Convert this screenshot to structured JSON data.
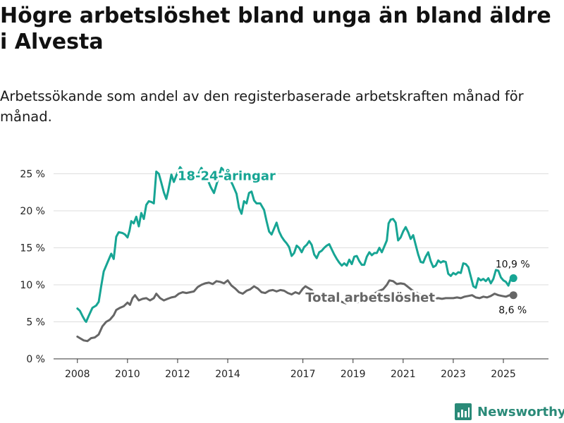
{
  "title": "Högre arbetslöshet bland unga än bland äldre i Alvesta",
  "subtitle": "Arbetssökande som andel av den registerbaserade arbetskraften månad för månad.",
  "brand": {
    "name": "Newsworthy",
    "color": "#2a8a78"
  },
  "chart_data": {
    "type": "line",
    "y_ticks": [
      "0 %",
      "5 %",
      "10 %",
      "15 %",
      "20 %",
      "25 %"
    ],
    "y_tick_values": [
      0,
      5,
      10,
      15,
      20,
      25
    ],
    "x_ticks": [
      "2008",
      "2010",
      "2012",
      "2014",
      "2017",
      "2019",
      "2021",
      "2023",
      "2025"
    ],
    "x_tick_values": [
      2008,
      2010,
      2012,
      2014,
      2017,
      2019,
      2021,
      2023,
      2025
    ],
    "xlim": [
      2007.05,
      2026.8
    ],
    "ylim": [
      0,
      26
    ],
    "series": [
      {
        "name": "18-24-åringar",
        "label": "18-24-åringar",
        "color": "#17a594",
        "end_label": "10,9 %",
        "points": [
          [
            2008.0,
            6.8
          ],
          [
            2008.1,
            6.5
          ],
          [
            2008.2,
            5.8
          ],
          [
            2008.3,
            5.2
          ],
          [
            2008.35,
            5.0
          ],
          [
            2008.45,
            5.8
          ],
          [
            2008.6,
            6.9
          ],
          [
            2008.75,
            7.2
          ],
          [
            2008.85,
            7.7
          ],
          [
            2008.95,
            9.8
          ],
          [
            2009.05,
            11.8
          ],
          [
            2009.2,
            13.0
          ],
          [
            2009.35,
            14.2
          ],
          [
            2009.45,
            13.5
          ],
          [
            2009.55,
            16.5
          ],
          [
            2009.65,
            17.1
          ],
          [
            2009.8,
            17.0
          ],
          [
            2009.9,
            16.8
          ],
          [
            2010.0,
            16.4
          ],
          [
            2010.08,
            17.3
          ],
          [
            2010.15,
            18.6
          ],
          [
            2010.25,
            18.3
          ],
          [
            2010.35,
            19.2
          ],
          [
            2010.45,
            17.9
          ],
          [
            2010.55,
            19.7
          ],
          [
            2010.65,
            18.9
          ],
          [
            2010.75,
            20.8
          ],
          [
            2010.85,
            21.3
          ],
          [
            2010.95,
            21.2
          ],
          [
            2011.05,
            21.0
          ],
          [
            2011.15,
            25.3
          ],
          [
            2011.25,
            25.0
          ],
          [
            2011.35,
            23.8
          ],
          [
            2011.45,
            22.5
          ],
          [
            2011.55,
            21.6
          ],
          [
            2011.62,
            22.6
          ],
          [
            2011.75,
            24.9
          ],
          [
            2011.85,
            23.9
          ],
          [
            2011.95,
            24.8
          ],
          [
            2012.1,
            25.9
          ],
          [
            2012.3,
            25.0
          ],
          [
            2012.55,
            24.3
          ],
          [
            2012.8,
            24.8
          ],
          [
            2012.95,
            25.8
          ],
          [
            2013.15,
            24.6
          ],
          [
            2013.32,
            23.2
          ],
          [
            2013.45,
            22.4
          ],
          [
            2013.6,
            24.1
          ],
          [
            2013.75,
            25.8
          ],
          [
            2014.0,
            24.9
          ],
          [
            2014.2,
            23.5
          ],
          [
            2014.35,
            22.3
          ],
          [
            2014.45,
            20.4
          ],
          [
            2014.55,
            19.6
          ],
          [
            2014.65,
            21.3
          ],
          [
            2014.75,
            21.0
          ],
          [
            2014.85,
            22.4
          ],
          [
            2014.95,
            22.6
          ],
          [
            2015.05,
            21.4
          ],
          [
            2015.15,
            21.0
          ],
          [
            2015.3,
            21.0
          ],
          [
            2015.45,
            20.1
          ],
          [
            2015.55,
            18.6
          ],
          [
            2015.65,
            17.2
          ],
          [
            2015.75,
            16.8
          ],
          [
            2015.85,
            17.6
          ],
          [
            2015.95,
            18.4
          ],
          [
            2016.05,
            17.2
          ],
          [
            2016.15,
            16.5
          ],
          [
            2016.25,
            16.0
          ],
          [
            2016.35,
            15.6
          ],
          [
            2016.45,
            15.1
          ],
          [
            2016.55,
            13.9
          ],
          [
            2016.65,
            14.3
          ],
          [
            2016.75,
            15.3
          ],
          [
            2016.85,
            15.0
          ],
          [
            2016.95,
            14.4
          ],
          [
            2017.05,
            15.1
          ],
          [
            2017.15,
            15.4
          ],
          [
            2017.25,
            15.9
          ],
          [
            2017.35,
            15.4
          ],
          [
            2017.45,
            14.1
          ],
          [
            2017.55,
            13.6
          ],
          [
            2017.65,
            14.4
          ],
          [
            2017.75,
            14.6
          ],
          [
            2017.85,
            15.0
          ],
          [
            2017.95,
            15.3
          ],
          [
            2018.05,
            15.5
          ],
          [
            2018.15,
            14.8
          ],
          [
            2018.25,
            14.1
          ],
          [
            2018.35,
            13.5
          ],
          [
            2018.45,
            13.0
          ],
          [
            2018.55,
            12.6
          ],
          [
            2018.65,
            12.9
          ],
          [
            2018.75,
            12.6
          ],
          [
            2018.85,
            13.4
          ],
          [
            2018.95,
            12.8
          ],
          [
            2019.05,
            13.8
          ],
          [
            2019.15,
            13.9
          ],
          [
            2019.25,
            13.2
          ],
          [
            2019.35,
            12.7
          ],
          [
            2019.45,
            12.7
          ],
          [
            2019.55,
            13.8
          ],
          [
            2019.65,
            14.4
          ],
          [
            2019.75,
            14.0
          ],
          [
            2019.85,
            14.3
          ],
          [
            2019.95,
            14.3
          ],
          [
            2020.05,
            15.0
          ],
          [
            2020.15,
            14.4
          ],
          [
            2020.25,
            15.2
          ],
          [
            2020.35,
            16.0
          ],
          [
            2020.42,
            18.3
          ],
          [
            2020.5,
            18.8
          ],
          [
            2020.6,
            18.9
          ],
          [
            2020.7,
            18.4
          ],
          [
            2020.8,
            16.0
          ],
          [
            2020.9,
            16.4
          ],
          [
            2021.0,
            17.2
          ],
          [
            2021.1,
            17.8
          ],
          [
            2021.2,
            17.1
          ],
          [
            2021.3,
            16.2
          ],
          [
            2021.4,
            16.7
          ],
          [
            2021.5,
            15.4
          ],
          [
            2021.6,
            14.1
          ],
          [
            2021.7,
            13.1
          ],
          [
            2021.8,
            13.0
          ],
          [
            2021.9,
            13.8
          ],
          [
            2022.0,
            14.4
          ],
          [
            2022.1,
            13.2
          ],
          [
            2022.2,
            12.4
          ],
          [
            2022.3,
            12.6
          ],
          [
            2022.4,
            13.3
          ],
          [
            2022.5,
            13.0
          ],
          [
            2022.6,
            13.2
          ],
          [
            2022.7,
            13.1
          ],
          [
            2022.8,
            11.5
          ],
          [
            2022.9,
            11.2
          ],
          [
            2023.0,
            11.6
          ],
          [
            2023.1,
            11.4
          ],
          [
            2023.2,
            11.7
          ],
          [
            2023.3,
            11.6
          ],
          [
            2023.4,
            12.9
          ],
          [
            2023.5,
            12.8
          ],
          [
            2023.6,
            12.4
          ],
          [
            2023.7,
            11.1
          ],
          [
            2023.8,
            9.8
          ],
          [
            2023.9,
            9.6
          ],
          [
            2024.0,
            10.9
          ],
          [
            2024.1,
            10.6
          ],
          [
            2024.2,
            10.8
          ],
          [
            2024.3,
            10.5
          ],
          [
            2024.4,
            10.9
          ],
          [
            2024.5,
            10.2
          ],
          [
            2024.6,
            10.8
          ],
          [
            2024.7,
            12.0
          ],
          [
            2024.8,
            11.9
          ],
          [
            2024.9,
            11.0
          ],
          [
            2025.0,
            10.6
          ],
          [
            2025.1,
            10.4
          ],
          [
            2025.2,
            9.9
          ],
          [
            2025.3,
            10.9
          ],
          [
            2025.4,
            10.9
          ]
        ]
      },
      {
        "name": "Total arbetslöshet",
        "label": "Total arbetslöshet",
        "color": "#666666",
        "end_label": "8,6 %",
        "points": [
          [
            2008.0,
            3.0
          ],
          [
            2008.1,
            2.8
          ],
          [
            2008.25,
            2.5
          ],
          [
            2008.4,
            2.4
          ],
          [
            2008.55,
            2.8
          ],
          [
            2008.7,
            2.9
          ],
          [
            2008.85,
            3.3
          ],
          [
            2009.0,
            4.4
          ],
          [
            2009.15,
            5.0
          ],
          [
            2009.3,
            5.3
          ],
          [
            2009.45,
            5.9
          ],
          [
            2009.55,
            6.6
          ],
          [
            2009.7,
            6.9
          ],
          [
            2009.85,
            7.1
          ],
          [
            2010.0,
            7.6
          ],
          [
            2010.1,
            7.3
          ],
          [
            2010.2,
            8.2
          ],
          [
            2010.3,
            8.6
          ],
          [
            2010.45,
            7.9
          ],
          [
            2010.6,
            8.1
          ],
          [
            2010.75,
            8.2
          ],
          [
            2010.9,
            7.9
          ],
          [
            2011.05,
            8.2
          ],
          [
            2011.15,
            8.8
          ],
          [
            2011.3,
            8.2
          ],
          [
            2011.45,
            7.9
          ],
          [
            2011.6,
            8.1
          ],
          [
            2011.75,
            8.3
          ],
          [
            2011.9,
            8.4
          ],
          [
            2012.05,
            8.8
          ],
          [
            2012.2,
            9.0
          ],
          [
            2012.35,
            8.9
          ],
          [
            2012.5,
            9.0
          ],
          [
            2012.65,
            9.1
          ],
          [
            2012.8,
            9.7
          ],
          [
            2012.95,
            10.0
          ],
          [
            2013.1,
            10.2
          ],
          [
            2013.25,
            10.3
          ],
          [
            2013.4,
            10.1
          ],
          [
            2013.55,
            10.5
          ],
          [
            2013.7,
            10.4
          ],
          [
            2013.85,
            10.2
          ],
          [
            2014.0,
            10.6
          ],
          [
            2014.15,
            9.9
          ],
          [
            2014.3,
            9.5
          ],
          [
            2014.45,
            9.0
          ],
          [
            2014.6,
            8.8
          ],
          [
            2014.75,
            9.2
          ],
          [
            2014.9,
            9.4
          ],
          [
            2015.05,
            9.8
          ],
          [
            2015.2,
            9.5
          ],
          [
            2015.35,
            9.0
          ],
          [
            2015.5,
            8.9
          ],
          [
            2015.65,
            9.2
          ],
          [
            2015.8,
            9.3
          ],
          [
            2015.95,
            9.1
          ],
          [
            2016.1,
            9.3
          ],
          [
            2016.25,
            9.2
          ],
          [
            2016.4,
            8.9
          ],
          [
            2016.55,
            8.7
          ],
          [
            2016.7,
            9.0
          ],
          [
            2016.85,
            8.8
          ],
          [
            2017.0,
            9.5
          ],
          [
            2017.1,
            9.8
          ],
          [
            2017.2,
            9.6
          ],
          [
            2017.35,
            9.3
          ],
          [
            2017.5,
            8.7
          ],
          [
            2017.65,
            8.5
          ],
          [
            2017.8,
            8.5
          ],
          [
            2017.95,
            8.3
          ],
          [
            2018.1,
            8.0
          ],
          [
            2018.25,
            7.9
          ],
          [
            2018.4,
            7.8
          ],
          [
            2018.55,
            7.7
          ],
          [
            2018.7,
            7.5
          ],
          [
            2018.85,
            7.7
          ],
          [
            2019.0,
            7.9
          ],
          [
            2019.15,
            7.6
          ],
          [
            2019.3,
            7.8
          ],
          [
            2019.45,
            8.2
          ],
          [
            2019.6,
            8.3
          ],
          [
            2019.75,
            8.7
          ],
          [
            2019.9,
            8.9
          ],
          [
            2020.05,
            9.2
          ],
          [
            2020.2,
            9.4
          ],
          [
            2020.35,
            10.0
          ],
          [
            2020.45,
            10.6
          ],
          [
            2020.6,
            10.5
          ],
          [
            2020.75,
            10.1
          ],
          [
            2020.9,
            10.2
          ],
          [
            2021.05,
            10.1
          ],
          [
            2021.2,
            9.7
          ],
          [
            2021.35,
            9.3
          ],
          [
            2021.5,
            9.0
          ],
          [
            2021.65,
            8.7
          ],
          [
            2021.8,
            8.4
          ],
          [
            2021.95,
            8.2
          ],
          [
            2022.1,
            8.2
          ],
          [
            2022.25,
            8.1
          ],
          [
            2022.4,
            8.2
          ],
          [
            2022.55,
            8.1
          ],
          [
            2022.7,
            8.2
          ],
          [
            2022.85,
            8.2
          ],
          [
            2023.0,
            8.2
          ],
          [
            2023.15,
            8.3
          ],
          [
            2023.3,
            8.2
          ],
          [
            2023.45,
            8.4
          ],
          [
            2023.6,
            8.5
          ],
          [
            2023.75,
            8.6
          ],
          [
            2023.9,
            8.3
          ],
          [
            2024.05,
            8.2
          ],
          [
            2024.2,
            8.4
          ],
          [
            2024.35,
            8.3
          ],
          [
            2024.5,
            8.5
          ],
          [
            2024.65,
            8.8
          ],
          [
            2024.8,
            8.6
          ],
          [
            2024.95,
            8.5
          ],
          [
            2025.1,
            8.4
          ],
          [
            2025.25,
            8.6
          ],
          [
            2025.4,
            8.6
          ]
        ]
      }
    ]
  }
}
